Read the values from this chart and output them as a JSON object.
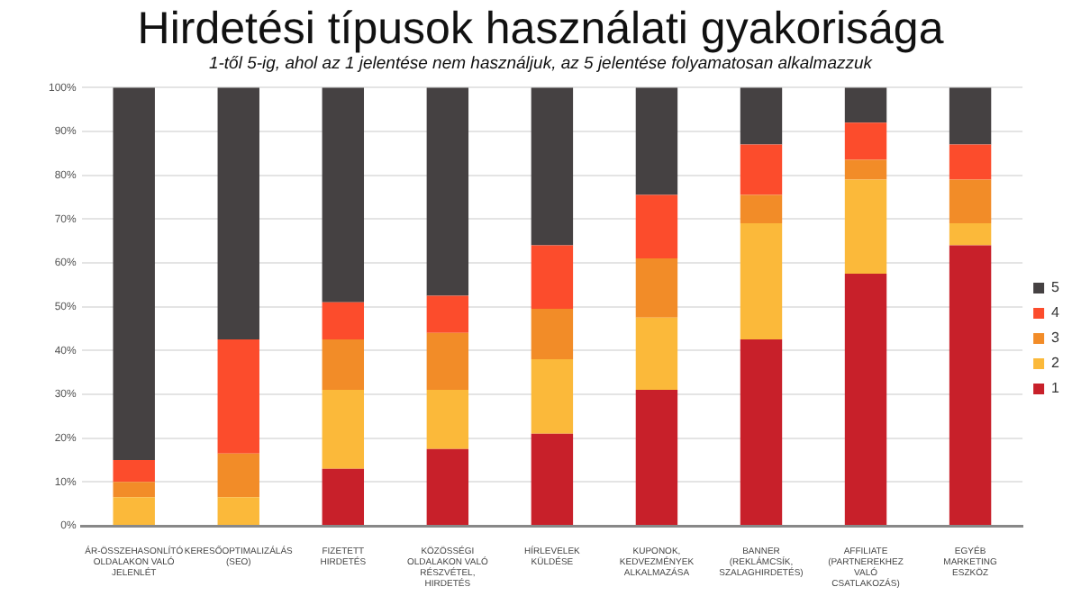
{
  "chart_data": {
    "type": "bar",
    "stacked": true,
    "title": "Hirdetési típusok használati gyakorisága",
    "subtitle": "1-től 5-ig, ahol az 1 jelentése nem használjuk, az 5 jelentése folyamatosan alkalmazzuk",
    "categories": [
      "ÁR-ÖSSZEHASONLÍTÓ OLDALAKON VALÓ JELENLÉT",
      "KERESŐOPTIMALIZÁLÁS (SEO)",
      "FIZETETT HIRDETÉS",
      "KÖZÖSSÉGI OLDALAKON VALÓ RÉSZVÉTEL, HIRDETÉS",
      "HÍRLEVELEK KÜLDÉSE",
      "KUPONOK, KEDVEZMÉNYEK ALKALMAZÁSA",
      "BANNER (REKLÁMCSÍK, SZALAGHIRDETÉS)",
      "AFFILIATE (PARTNEREKHEZ VALÓ CSATLAKOZÁS)",
      "EGYÉB MARKETING ESZKÖZ"
    ],
    "series": [
      {
        "name": "1",
        "color": "#c8202a",
        "values": [
          0,
          0,
          13,
          17.5,
          21,
          31,
          42.5,
          57.5,
          64
        ]
      },
      {
        "name": "2",
        "color": "#fbb93a",
        "values": [
          6.5,
          6.5,
          18,
          13.5,
          17,
          16.5,
          26.5,
          21.5,
          5
        ]
      },
      {
        "name": "3",
        "color": "#f28c28",
        "values": [
          3.5,
          10,
          11.5,
          13,
          11.5,
          13.5,
          6.5,
          4.5,
          10
        ]
      },
      {
        "name": "4",
        "color": "#fc4c2c",
        "values": [
          5,
          26,
          8.5,
          8.5,
          14.5,
          14.5,
          11.5,
          8.5,
          8
        ]
      },
      {
        "name": "5",
        "color": "#454142",
        "values": [
          85,
          57.5,
          49,
          47.5,
          36,
          24.5,
          13,
          8,
          13
        ]
      }
    ],
    "ylim": [
      0,
      100
    ],
    "yticks": [
      {
        "value": 0,
        "label": "0%"
      },
      {
        "value": 10,
        "label": "10%"
      },
      {
        "value": 20,
        "label": "20%"
      },
      {
        "value": 30,
        "label": "30%"
      },
      {
        "value": 40,
        "label": "40%"
      },
      {
        "value": 50,
        "label": "50%"
      },
      {
        "value": 60,
        "label": "60%"
      },
      {
        "value": 70,
        "label": "70%"
      },
      {
        "value": 80,
        "label": "80%"
      },
      {
        "value": 90,
        "label": "90%"
      },
      {
        "value": 100,
        "label": "100%"
      }
    ],
    "grid": "y",
    "legend": "right"
  }
}
